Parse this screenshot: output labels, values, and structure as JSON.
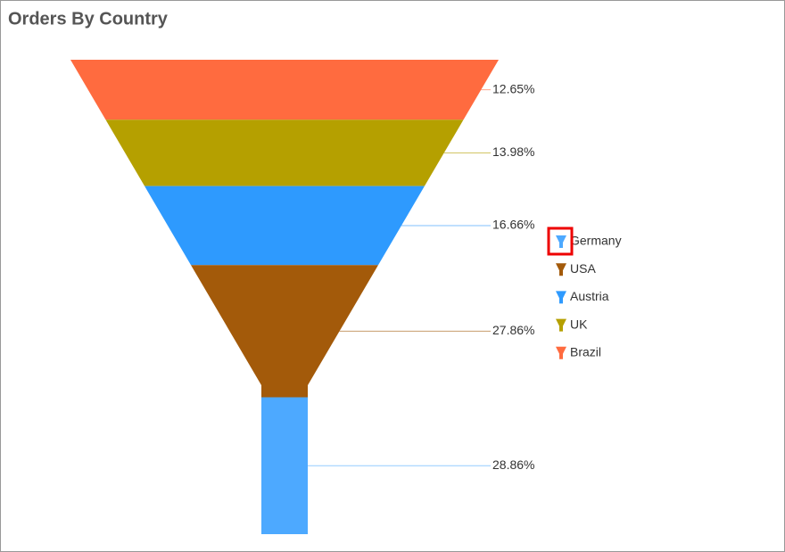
{
  "chart_data": {
    "type": "funnel",
    "title": "Orders By Country",
    "categories": [
      "Germany",
      "USA",
      "Austria",
      "UK",
      "Brazil"
    ],
    "values": [
      28.86,
      27.86,
      16.66,
      13.98,
      12.65
    ],
    "value_labels": [
      "28.86%",
      "27.86%",
      "16.66%",
      "13.98%",
      "12.65%"
    ],
    "colors": [
      "#4DA9FF",
      "#A35A0A",
      "#2E9AFE",
      "#B5A000",
      "#FF6B3F"
    ]
  }
}
